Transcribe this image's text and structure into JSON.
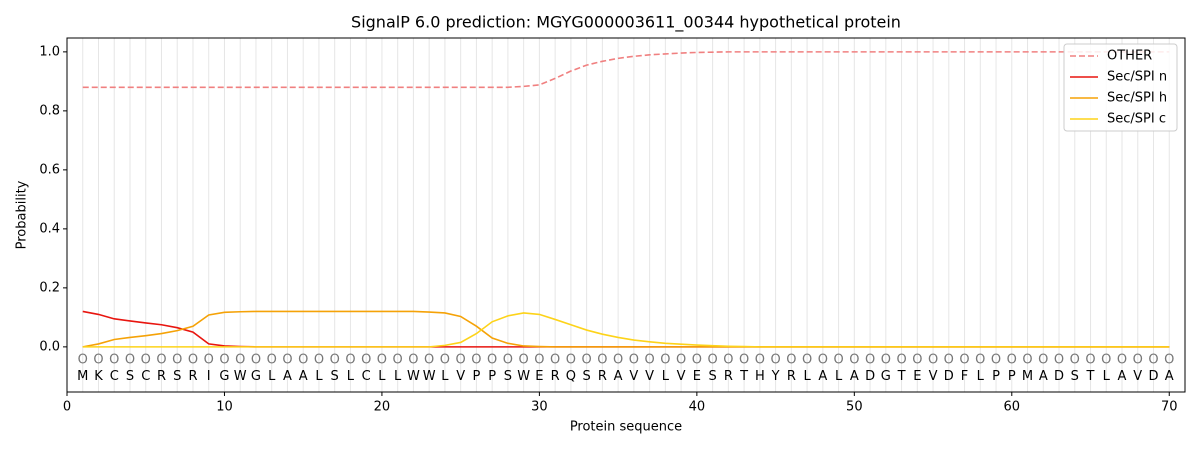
{
  "chart_data": {
    "type": "line",
    "title": "SignalP 6.0 prediction: MGYG000003611_00344 hypothetical protein",
    "xlabel": "Protein sequence",
    "ylabel": "Probability",
    "x": [
      1,
      2,
      3,
      4,
      5,
      6,
      7,
      8,
      9,
      10,
      11,
      12,
      13,
      14,
      15,
      16,
      17,
      18,
      19,
      20,
      21,
      22,
      23,
      24,
      25,
      26,
      27,
      28,
      29,
      30,
      31,
      32,
      33,
      34,
      35,
      36,
      37,
      38,
      39,
      40,
      41,
      42,
      43,
      44,
      45,
      46,
      47,
      48,
      49,
      50,
      51,
      52,
      53,
      54,
      55,
      56,
      57,
      58,
      59,
      60,
      61,
      62,
      63,
      64,
      65,
      66,
      67,
      68,
      69,
      70
    ],
    "sequence": [
      "M",
      "K",
      "C",
      "S",
      "C",
      "R",
      "S",
      "R",
      "I",
      "G",
      "W",
      "G",
      "L",
      "A",
      "A",
      "L",
      "S",
      "L",
      "C",
      "L",
      "L",
      "W",
      "W",
      "L",
      "V",
      "P",
      "P",
      "S",
      "W",
      "E",
      "R",
      "Q",
      "S",
      "R",
      "A",
      "V",
      "V",
      "L",
      "V",
      "E",
      "S",
      "R",
      "T",
      "H",
      "Y",
      "R",
      "L",
      "A",
      "L",
      "A",
      "D",
      "G",
      "T",
      "E",
      "V",
      "D",
      "F",
      "L",
      "P",
      "P",
      "M",
      "A",
      "D",
      "S",
      "T",
      "L",
      "A",
      "V",
      "D",
      "A"
    ],
    "predicted_labels": [
      "O",
      "O",
      "O",
      "O",
      "O",
      "O",
      "O",
      "O",
      "O",
      "O",
      "O",
      "O",
      "O",
      "O",
      "O",
      "O",
      "O",
      "O",
      "O",
      "O",
      "O",
      "O",
      "O",
      "O",
      "O",
      "O",
      "O",
      "O",
      "O",
      "O",
      "O",
      "O",
      "O",
      "O",
      "O",
      "O",
      "O",
      "O",
      "O",
      "O",
      "O",
      "O",
      "O",
      "O",
      "O",
      "O",
      "O",
      "O",
      "O",
      "O",
      "O",
      "O",
      "O",
      "O",
      "O",
      "O",
      "O",
      "O",
      "O",
      "O",
      "O",
      "O",
      "O",
      "O",
      "O",
      "O",
      "O",
      "O",
      "O",
      "O"
    ],
    "series": [
      {
        "name": "OTHER",
        "color": "#f08080",
        "linestyle": "dashed",
        "values": [
          0.88,
          0.88,
          0.88,
          0.88,
          0.88,
          0.88,
          0.88,
          0.88,
          0.88,
          0.88,
          0.88,
          0.88,
          0.88,
          0.88,
          0.88,
          0.88,
          0.88,
          0.88,
          0.88,
          0.88,
          0.88,
          0.88,
          0.88,
          0.88,
          0.88,
          0.88,
          0.88,
          0.88,
          0.883,
          0.888,
          0.91,
          0.935,
          0.955,
          0.968,
          0.978,
          0.985,
          0.99,
          0.993,
          0.996,
          0.998,
          0.999,
          1,
          1,
          1,
          1,
          1,
          1,
          1,
          1,
          1,
          1,
          1,
          1,
          1,
          1,
          1,
          1,
          1,
          1,
          1,
          1,
          1,
          1,
          1,
          1,
          1,
          1,
          1,
          1,
          1
        ]
      },
      {
        "name": "Sec/SPI n",
        "color": "#e8150f",
        "linestyle": "solid",
        "values": [
          0.12,
          0.11,
          0.095,
          0.088,
          0.081,
          0.075,
          0.065,
          0.05,
          0.01,
          0.003,
          0.001,
          0,
          0,
          0,
          0,
          0,
          0,
          0,
          0,
          0,
          0,
          0,
          0,
          0,
          0,
          0,
          0,
          0,
          0,
          0,
          0,
          0,
          0,
          0,
          0,
          0,
          0,
          0,
          0,
          0,
          0,
          0,
          0,
          0,
          0,
          0,
          0,
          0,
          0,
          0,
          0,
          0,
          0,
          0,
          0,
          0,
          0,
          0,
          0,
          0,
          0,
          0,
          0,
          0,
          0,
          0,
          0,
          0,
          0,
          0
        ]
      },
      {
        "name": "Sec/SPI h",
        "color": "#f5a207",
        "linestyle": "solid",
        "values": [
          0,
          0.01,
          0.025,
          0.032,
          0.038,
          0.045,
          0.055,
          0.07,
          0.108,
          0.117,
          0.119,
          0.12,
          0.12,
          0.12,
          0.12,
          0.12,
          0.12,
          0.12,
          0.12,
          0.12,
          0.12,
          0.12,
          0.118,
          0.115,
          0.103,
          0.07,
          0.03,
          0.012,
          0.003,
          0.001,
          0,
          0,
          0,
          0,
          0,
          0,
          0,
          0,
          0,
          0,
          0,
          0,
          0,
          0,
          0,
          0,
          0,
          0,
          0,
          0,
          0,
          0,
          0,
          0,
          0,
          0,
          0,
          0,
          0,
          0,
          0,
          0,
          0,
          0,
          0,
          0,
          0,
          0,
          0,
          0
        ]
      },
      {
        "name": "Sec/SPI c",
        "color": "#fdd319",
        "linestyle": "solid",
        "values": [
          0,
          0,
          0,
          0,
          0,
          0,
          0,
          0,
          0,
          0,
          0,
          0,
          0,
          0,
          0,
          0,
          0,
          0,
          0,
          0,
          0,
          0,
          0,
          0.005,
          0.015,
          0.045,
          0.085,
          0.105,
          0.115,
          0.11,
          0.093,
          0.075,
          0.057,
          0.043,
          0.032,
          0.023,
          0.017,
          0.012,
          0.009,
          0.006,
          0.004,
          0.002,
          0.001,
          0,
          0,
          0,
          0,
          0,
          0,
          0,
          0,
          0,
          0,
          0,
          0,
          0,
          0,
          0,
          0,
          0,
          0,
          0,
          0,
          0,
          0,
          0,
          0,
          0,
          0,
          0
        ]
      }
    ],
    "xlim": [
      0,
      71
    ],
    "ylim": [
      -0.153,
      1.047
    ],
    "xticks": [
      0,
      10,
      20,
      30,
      40,
      50,
      60,
      70
    ],
    "yticks": [
      {
        "value": 0,
        "label": "0.0"
      },
      0.2,
      0.4,
      0.6,
      0.8,
      {
        "value": 1,
        "label": "1.0"
      }
    ],
    "grid": true,
    "legend": "upper right"
  }
}
